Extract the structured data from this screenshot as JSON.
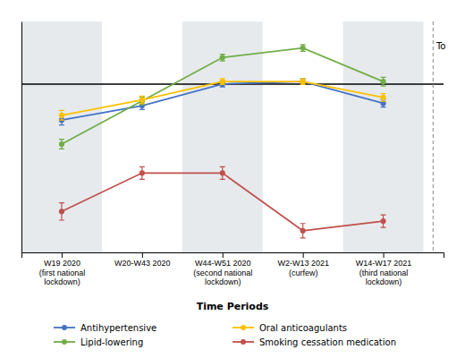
{
  "chart_data": {
    "type": "line",
    "categories": [
      "W19 2020\n(first national\nlockdown)",
      "W20-W43 2020",
      "W44-W51 2020\n(second national\nlockdown)",
      "W2-W13 2021\n(curfew)",
      "W14-W17 2021\n(third national\nlockdown)"
    ],
    "series": [
      {
        "name": "Antihypertensive",
        "color": "#4472c4",
        "values": [
          0.925,
          0.955,
          1.0,
          1.005,
          0.96
        ],
        "errors": [
          0.01,
          0.008,
          0.006,
          0.006,
          0.008
        ]
      },
      {
        "name": "Lipid-lowering",
        "color": "#70ad47",
        "values": [
          0.875,
          0.965,
          1.055,
          1.075,
          1.005
        ],
        "errors": [
          0.01,
          0.008,
          0.007,
          0.007,
          0.009
        ]
      },
      {
        "name": "Oral anticoagulants",
        "color": "#ffc000",
        "values": [
          0.935,
          0.967,
          1.005,
          1.005,
          0.972
        ],
        "errors": [
          0.01,
          0.008,
          0.006,
          0.006,
          0.008
        ]
      },
      {
        "name": "Smoking cessation medication",
        "color": "#c0504d",
        "values": [
          0.735,
          0.815,
          0.815,
          0.695,
          0.715
        ],
        "errors": [
          0.018,
          0.013,
          0.013,
          0.015,
          0.013
        ]
      }
    ],
    "xlabel": "Time Periods",
    "ylim": [
      0.65,
      1.13
    ],
    "reference_line": 1.0,
    "annotations": [
      "To"
    ],
    "legend": "bottom",
    "grid": false,
    "tick_labels": "x",
    "marker": "circle"
  }
}
